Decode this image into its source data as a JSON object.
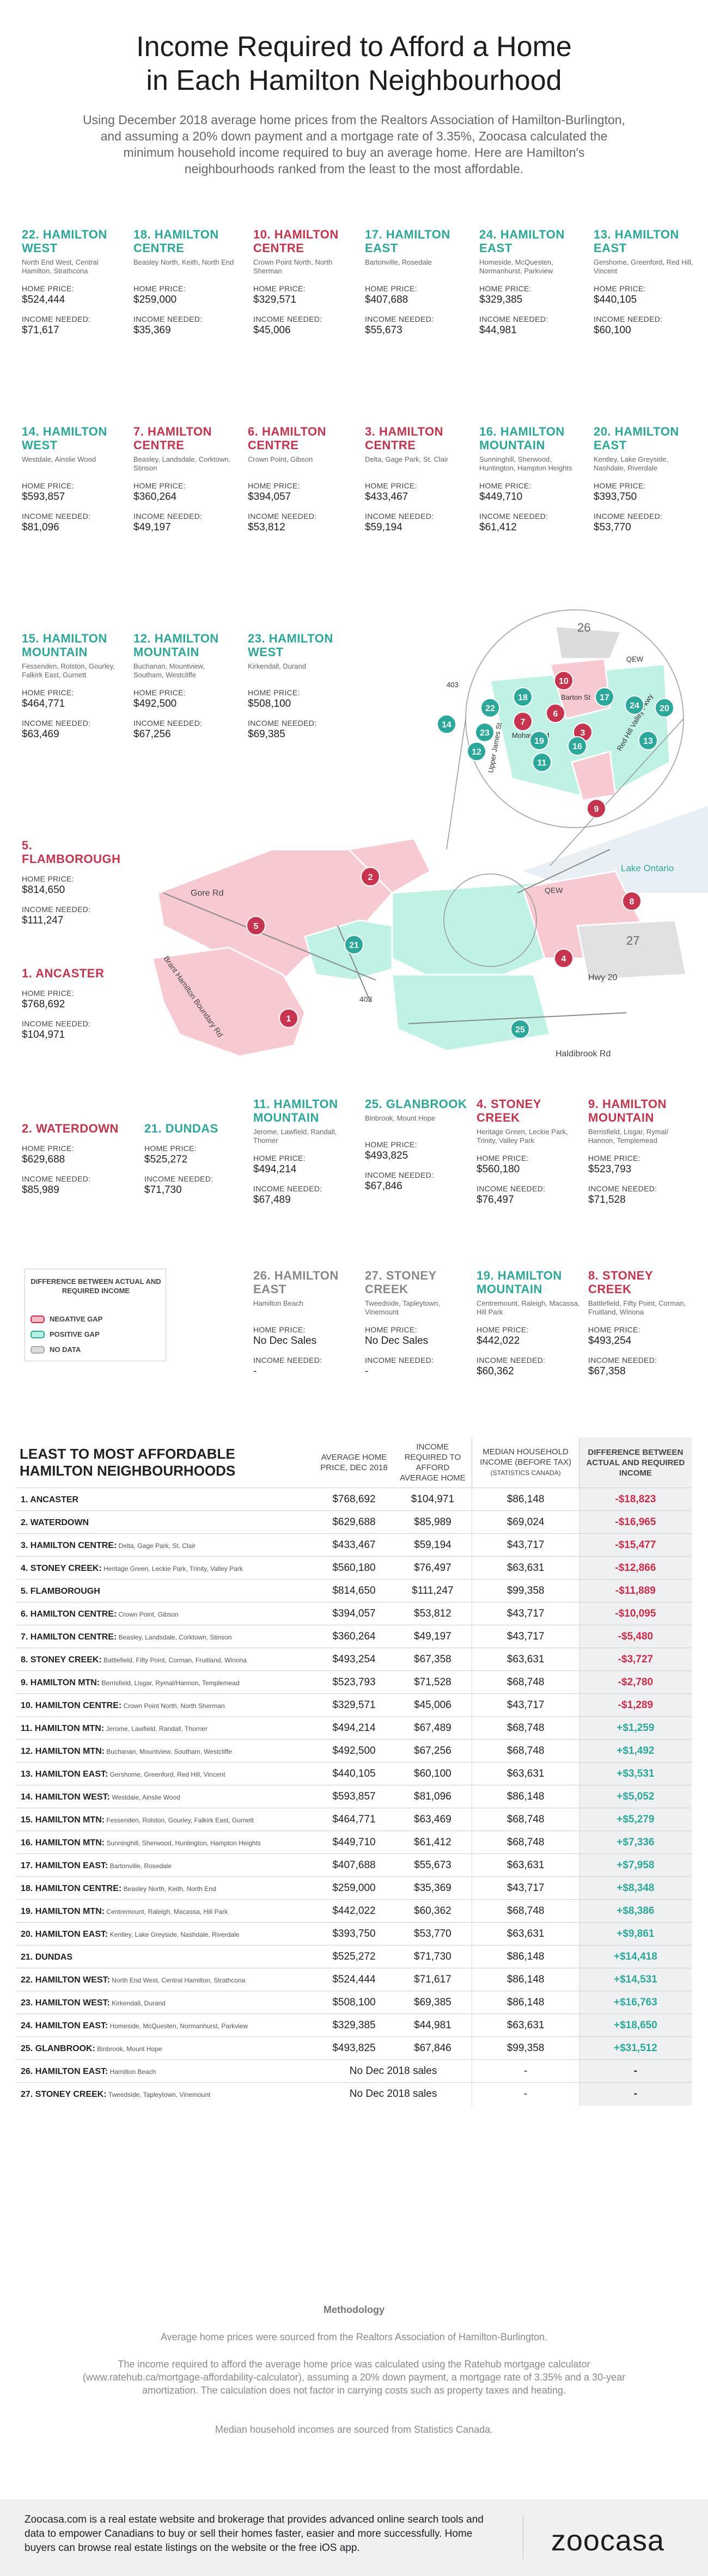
{
  "title_line1": "Income Required to Afford a Home",
  "title_line2": "in Each Hamilton Neighbourhood",
  "intro": "Using December 2018 average home prices from the Realtors Association of Hamilton-Burlington, and assuming a 20% down payment and a mortgage rate of 3.35%, Zoocasa calculated the minimum household income required to buy an average home. Here are Hamilton's neighbourhoods ranked from the least to the most affordable.",
  "labels": {
    "home_price": "HOME PRICE:",
    "income_needed": "INCOME NEEDED:"
  },
  "cards": [
    {
      "name": "22. HAMILTON WEST",
      "sub": "North End West, Central Hamilton, Strathcona",
      "price": "$524,444",
      "income": "$71,617",
      "gap": "pos"
    },
    {
      "name": "18. HAMILTON CENTRE",
      "sub": "Beasley North, Keith, North End",
      "price": "$259,000",
      "income": "$35,369",
      "gap": "pos"
    },
    {
      "name": "10. HAMILTON CENTRE",
      "sub": "Crown Point North, North Sherman",
      "price": "$329,571",
      "income": "$45,006",
      "gap": "neg"
    },
    {
      "name": "17. HAMILTON EAST",
      "sub": "Bartonville, Rosedale",
      "price": "$407,688",
      "income": "$55,673",
      "gap": "pos"
    },
    {
      "name": "24. HAMILTON EAST",
      "sub": "Homeside, McQuesten, Normanhurst, Parkview",
      "price": "$329,385",
      "income": "$44,981",
      "gap": "pos"
    },
    {
      "name": "13. HAMILTON EAST",
      "sub": "Gershome, Greenford, Red Hill, Vincent",
      "price": "$440,105",
      "income": "$60,100",
      "gap": "pos"
    },
    {
      "name": "14. HAMILTON WEST",
      "sub": "Westdale, Ainslie Wood",
      "price": "$593,857",
      "income": "$81,096",
      "gap": "pos"
    },
    {
      "name": "7. HAMILTON CENTRE",
      "sub": "Beasley, Landsdale, Corktown, Stinson",
      "price": "$360,264",
      "income": "$49,197",
      "gap": "neg"
    },
    {
      "name": "6. HAMILTON CENTRE",
      "sub": "Crown Point, Gibson",
      "price": "$394,057",
      "income": "$53,812",
      "gap": "neg"
    },
    {
      "name": "3. HAMILTON CENTRE",
      "sub": "Delta, Gage Park, St. Clair",
      "price": "$433,467",
      "income": "$59,194",
      "gap": "neg"
    },
    {
      "name": "16. HAMILTON MOUNTAIN",
      "sub": "Sunninghill, Sherwood, Huntington, Hampton Heights",
      "price": "$449,710",
      "income": "$61,412",
      "gap": "pos"
    },
    {
      "name": "20. HAMILTON EAST",
      "sub": "Kentley, Lake Greyside, Nashdale, Riverdale",
      "price": "$393,750",
      "income": "$53,770",
      "gap": "pos"
    },
    {
      "name": "15. HAMILTON MOUNTAIN",
      "sub": "Fessenden, Rolston, Gourley, Falkirk East, Gurnett",
      "price": "$464,771",
      "income": "$63,469",
      "gap": "pos"
    },
    {
      "name": "12. HAMILTON MOUNTAIN",
      "sub": "Buchanan, Mountview, Southam, Westcliffe",
      "price": "$492,500",
      "income": "$67,256",
      "gap": "pos"
    },
    {
      "name": "23. HAMILTON WEST",
      "sub": "Kirkendall, Durand",
      "price": "$508,100",
      "income": "$69,385",
      "gap": "pos"
    },
    {
      "name": "5. FLAMBOROUGH",
      "sub": "",
      "price": "$814,650",
      "income": "$111,247",
      "gap": "neg"
    },
    {
      "name": "1. ANCASTER",
      "sub": "",
      "price": "$768,692",
      "income": "$104,971",
      "gap": "neg"
    },
    {
      "name": "2. WATERDOWN",
      "sub": "",
      "price": "$629,688",
      "income": "$85,989",
      "gap": "neg"
    },
    {
      "name": "21. DUNDAS",
      "sub": "",
      "price": "$525,272",
      "income": "$71,730",
      "gap": "pos"
    },
    {
      "name": "11. HAMILTON MOUNTAIN",
      "sub": "Jerome, Lawfield, Randall, Thorner",
      "price": "$494,214",
      "income": "$67,489",
      "gap": "pos"
    },
    {
      "name": "25. GLANBROOK",
      "sub": "Binbrook, Mount Hope",
      "price": "$493,825",
      "income": "$67,846",
      "gap": "pos"
    },
    {
      "name": "4. STONEY CREEK",
      "sub": "Heritage Green, Leckie Park, Trinity, Valley Park",
      "price": "$560,180",
      "income": "$76,497",
      "gap": "neg"
    },
    {
      "name": "9. HAMILTON MOUNTAIN",
      "sub": "Berrisfield, Lisgar, Rymal/ Hannon, Templemead",
      "price": "$523,793",
      "income": "$71,528",
      "gap": "neg"
    },
    {
      "name": "26. HAMILTON EAST",
      "sub": "Hamilton Beach",
      "price": "No Dec Sales",
      "income": "-",
      "gap": "nd"
    },
    {
      "name": "27. STONEY CREEK",
      "sub": "Tweedside, Tapleytown, Vinemount",
      "price": "No Dec Sales",
      "income": "-",
      "gap": "nd"
    },
    {
      "name": "19. HAMILTON MOUNTAIN",
      "sub": "Centremount, Raleigh, Macassa, Hill Park",
      "price": "$442,022",
      "income": "$60,362",
      "gap": "pos"
    },
    {
      "name": "8. STONEY CREEK",
      "sub": "Battlefield, Fifty Point, Corman, Fruitland, Winona",
      "price": "$493,254",
      "income": "$67,358",
      "gap": "neg"
    }
  ],
  "legend": {
    "title": "DIFFERENCE BETWEEN ACTUAL AND REQUIRED INCOME",
    "negative": "NEGATIVE GAP",
    "positive": "POSITIVE GAP",
    "nodata": "NO DATA",
    "neg_color": "#f2bcc6",
    "pos_color": "#b6f0e2",
    "nd_color": "#dcdcdc"
  },
  "map": {
    "labels": [
      "Gore Rd",
      "Brant Hamilton Boundary Rd",
      "403",
      "Lake Ontario",
      "QEW",
      "Hwy 20",
      "Haldibrook Rd",
      "Barton St",
      "Mohawk Rd",
      "Upper James St",
      "Red Hill Valley Pkwy",
      "26",
      "27"
    ],
    "markers": [
      "1",
      "2",
      "4",
      "5",
      "8",
      "21",
      "25",
      "3",
      "6",
      "7",
      "9",
      "10",
      "11",
      "12",
      "13",
      "14",
      "16",
      "17",
      "18",
      "19",
      "20",
      "22",
      "23",
      "24"
    ]
  },
  "table": {
    "headers": [
      "LEAST TO MOST AFFORDABLE HAMILTON NEIGHBOURHOODS",
      "AVERAGE HOME PRICE, DEC 2018",
      "INCOME REQUIRED TO AFFORD AVERAGE HOME",
      "MEDIAN HOUSEHOLD INCOME (BEFORE TAX)",
      "(STATISTICS CANADA)",
      "DIFFERENCE BETWEEN ACTUAL AND REQUIRED INCOME"
    ],
    "rows": [
      {
        "name": "1. ANCASTER",
        "detail": "",
        "price": "$768,692",
        "required": "$104,971",
        "median": "$86,148",
        "diff": "-$18,823",
        "gap": "neg"
      },
      {
        "name": "2. WATERDOWN",
        "detail": "",
        "price": "$629,688",
        "required": "$85,989",
        "median": "$69,024",
        "diff": "-$16,965",
        "gap": "neg"
      },
      {
        "name": "3. HAMILTON CENTRE:",
        "detail": "Delta, Gage Park, St. Clair",
        "price": "$433,467",
        "required": "$59,194",
        "median": "$43,717",
        "diff": "-$15,477",
        "gap": "neg"
      },
      {
        "name": "4. STONEY CREEK:",
        "detail": "Heritage Green, Leckie Park, Trinity, Valley Park",
        "price": "$560,180",
        "required": "$76,497",
        "median": "$63,631",
        "diff": "-$12,866",
        "gap": "neg"
      },
      {
        "name": "5. FLAMBOROUGH",
        "detail": "",
        "price": "$814,650",
        "required": "$111,247",
        "median": "$99,358",
        "diff": "-$11,889",
        "gap": "neg"
      },
      {
        "name": "6. HAMILTON CENTRE:",
        "detail": "Crown Point, Gibson",
        "price": "$394,057",
        "required": "$53,812",
        "median": "$43,717",
        "diff": "-$10,095",
        "gap": "neg"
      },
      {
        "name": "7. HAMILTON CENTRE:",
        "detail": "Beasley, Landsdale, Corktown, Stinson",
        "price": "$360,264",
        "required": "$49,197",
        "median": "$43,717",
        "diff": "-$5,480",
        "gap": "neg"
      },
      {
        "name": "8. STONEY CREEK:",
        "detail": "Battlefield, Fifty Point, Corman, Fruitland, Winona",
        "price": "$493,254",
        "required": "$67,358",
        "median": "$63,631",
        "diff": "-$3,727",
        "gap": "neg"
      },
      {
        "name": "9. HAMILTON MTN:",
        "detail": "Berrisfield, Lisgar, Rymal/Hannon, Templemead",
        "price": "$523,793",
        "required": "$71,528",
        "median": "$68,748",
        "diff": "-$2,780",
        "gap": "neg"
      },
      {
        "name": "10. HAMILTON CENTRE:",
        "detail": "Crown Point North, North Sherman",
        "price": "$329,571",
        "required": "$45,006",
        "median": "$43,717",
        "diff": "-$1,289",
        "gap": "neg"
      },
      {
        "name": "11. HAMILTON MTN:",
        "detail": "Jerome, Lawfield, Randall, Thorner",
        "price": "$494,214",
        "required": "$67,489",
        "median": "$68,748",
        "diff": "+$1,259",
        "gap": "pos"
      },
      {
        "name": "12. HAMILTON MTN:",
        "detail": "Buchanan, Mountview, Southam, Westcliffe",
        "price": "$492,500",
        "required": "$67,256",
        "median": "$68,748",
        "diff": "+$1,492",
        "gap": "pos"
      },
      {
        "name": "13. HAMILTON EAST:",
        "detail": "Gershome, Greenford, Red Hill, Vincent",
        "price": "$440,105",
        "required": "$60,100",
        "median": "$63,631",
        "diff": "+$3,531",
        "gap": "pos"
      },
      {
        "name": "14. HAMILTON WEST:",
        "detail": "Westdale, Ainslie Wood",
        "price": "$593,857",
        "required": "$81,096",
        "median": "$86,148",
        "diff": "+$5,052",
        "gap": "pos"
      },
      {
        "name": "15. HAMILTON MTN:",
        "detail": "Fessenden, Rolston, Gourley, Falkirk East, Gurnett",
        "price": "$464,771",
        "required": "$63,469",
        "median": "$68,748",
        "diff": "+$5,279",
        "gap": "pos"
      },
      {
        "name": "16. HAMILTON MTN:",
        "detail": "Sunninghill, Sherwood, Huntington, Hampton Heights",
        "price": "$449,710",
        "required": "$61,412",
        "median": "$68,748",
        "diff": "+$7,336",
        "gap": "pos"
      },
      {
        "name": "17. HAMILTON EAST:",
        "detail": "Bartonville, Rosedale",
        "price": "$407,688",
        "required": "$55,673",
        "median": "$63,631",
        "diff": "+$7,958",
        "gap": "pos"
      },
      {
        "name": "18. HAMILTON CENTRE:",
        "detail": "Beasley North, Keith, North End",
        "price": "$259,000",
        "required": "$35,369",
        "median": "$43,717",
        "diff": "+$8,348",
        "gap": "pos"
      },
      {
        "name": "19. HAMILTON MTN:",
        "detail": "Centremount, Raleigh, Macassa, Hill Park",
        "price": "$442,022",
        "required": "$60,362",
        "median": "$68,748",
        "diff": "+$8,386",
        "gap": "pos"
      },
      {
        "name": "20. HAMILTON EAST:",
        "detail": "Kentley, Lake Greyside, Nashdale, Riverdale",
        "price": "$393,750",
        "required": "$53,770",
        "median": "$63,631",
        "diff": "+$9,861",
        "gap": "pos"
      },
      {
        "name": "21. DUNDAS",
        "detail": "",
        "price": "$525,272",
        "required": "$71,730",
        "median": "$86,148",
        "diff": "+$14,418",
        "gap": "pos"
      },
      {
        "name": "22. HAMILTON WEST:",
        "detail": "North End West, Central Hamilton, Strathcona",
        "price": "$524,444",
        "required": "$71,617",
        "median": "$86,148",
        "diff": "+$14,531",
        "gap": "pos"
      },
      {
        "name": "23. HAMILTON WEST:",
        "detail": "Kirkendall, Durand",
        "price": "$508,100",
        "required": "$69,385",
        "median": "$86,148",
        "diff": "+$16,763",
        "gap": "pos"
      },
      {
        "name": "24. HAMILTON EAST:",
        "detail": "Homeside, McQuesten, Normanhurst, Parkview",
        "price": "$329,385",
        "required": "$44,981",
        "median": "$63,631",
        "diff": "+$18,650",
        "gap": "pos"
      },
      {
        "name": "25. GLANBROOK:",
        "detail": "Binbrook, Mount Hope",
        "price": "$493,825",
        "required": "$67,846",
        "median": "$99,358",
        "diff": "+$31,512",
        "gap": "pos"
      },
      {
        "name": "26. HAMILTON EAST:",
        "detail": "Hamilton Beach",
        "nosale": "No Dec 2018 sales",
        "median": "-",
        "diff": "-",
        "gap": "nd"
      },
      {
        "name": "27. STONEY CREEK:",
        "detail": "Tweedside, Tapleytown, Vinemount",
        "nosale": "No Dec 2018 sales",
        "median": "-",
        "diff": "-",
        "gap": "nd"
      }
    ]
  },
  "methodology": {
    "title": "Methodology",
    "line1": "Average home prices were sourced from the Realtors Association of Hamilton-Burlington.",
    "line2": "The income required to afford the average home price was calculated using the Ratehub mortgage calculator (www.ratehub.ca/mortgage-affordability-calculator), assuming a 20% down payment, a mortgage rate of 3.35% and a 30-year amortization. The calculation does not factor in carrying costs such as property taxes and heating.",
    "line3": "Median household incomes are sourced from Statistics Canada."
  },
  "footer": {
    "text": "Zoocasa.com is a real estate website and brokerage that provides advanced online search tools and data to empower Canadians to buy or sell their homes faster, easier and more successfully. Home buyers can browse real estate listings on the website or the free iOS app.",
    "logo": "zoocasa"
  }
}
